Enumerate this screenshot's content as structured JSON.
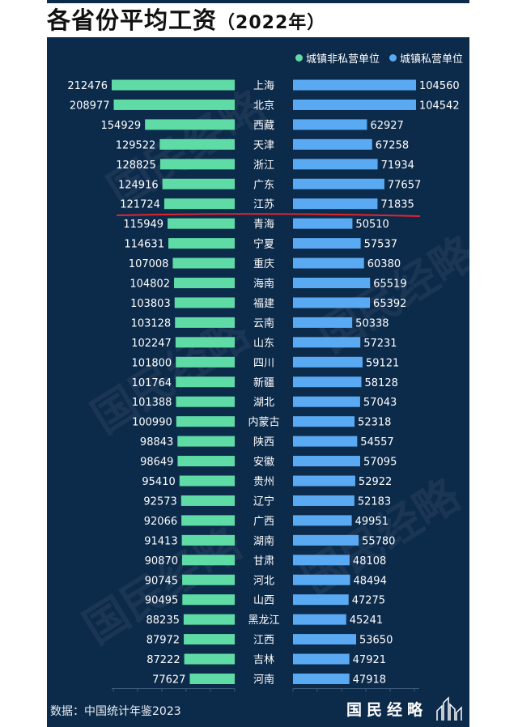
{
  "title": {
    "main": "各省份平均工资",
    "year": "（2022年）"
  },
  "legend": [
    {
      "name": "城镇非私营单位",
      "color": "#5fdba6"
    },
    {
      "name": "城镇私营单位",
      "color": "#5aaaf3"
    }
  ],
  "source": "数据：中国统计年鉴2023",
  "brand": "国民经略",
  "watermark": "国民经略",
  "chart_data": {
    "type": "bar",
    "orientation": "horizontal-mirrored",
    "categories": [
      "上海",
      "北京",
      "西藏",
      "天津",
      "浙江",
      "广东",
      "江苏",
      "青海",
      "宁夏",
      "重庆",
      "海南",
      "福建",
      "云南",
      "山东",
      "四川",
      "新疆",
      "湖北",
      "内蒙古",
      "陕西",
      "安徽",
      "贵州",
      "辽宁",
      "广西",
      "湖南",
      "甘肃",
      "河北",
      "山西",
      "黑龙江",
      "江西",
      "吉林",
      "河南"
    ],
    "series": [
      {
        "name": "城镇非私营单位",
        "color": "#5fdba6",
        "side": "left",
        "values": [
          212476,
          208977,
          154929,
          129522,
          128825,
          124916,
          121724,
          115949,
          114631,
          107008,
          104802,
          103803,
          103128,
          102247,
          101800,
          101764,
          101388,
          100990,
          98843,
          98649,
          95410,
          92573,
          92066,
          91413,
          90870,
          90745,
          90495,
          88235,
          87972,
          87222,
          77627
        ]
      },
      {
        "name": "城镇私营单位",
        "color": "#5aaaf3",
        "side": "right",
        "values": [
          104560,
          104542,
          62927,
          67258,
          71934,
          77657,
          71835,
          50510,
          57537,
          60380,
          65519,
          65392,
          50338,
          57231,
          59121,
          58128,
          57043,
          52318,
          54557,
          57095,
          52922,
          52183,
          49951,
          55780,
          48108,
          48494,
          47275,
          45241,
          53650,
          47921,
          47918
        ]
      }
    ],
    "annotation": {
      "type": "underline",
      "after_category": "江苏",
      "color": "#e0262b"
    }
  }
}
